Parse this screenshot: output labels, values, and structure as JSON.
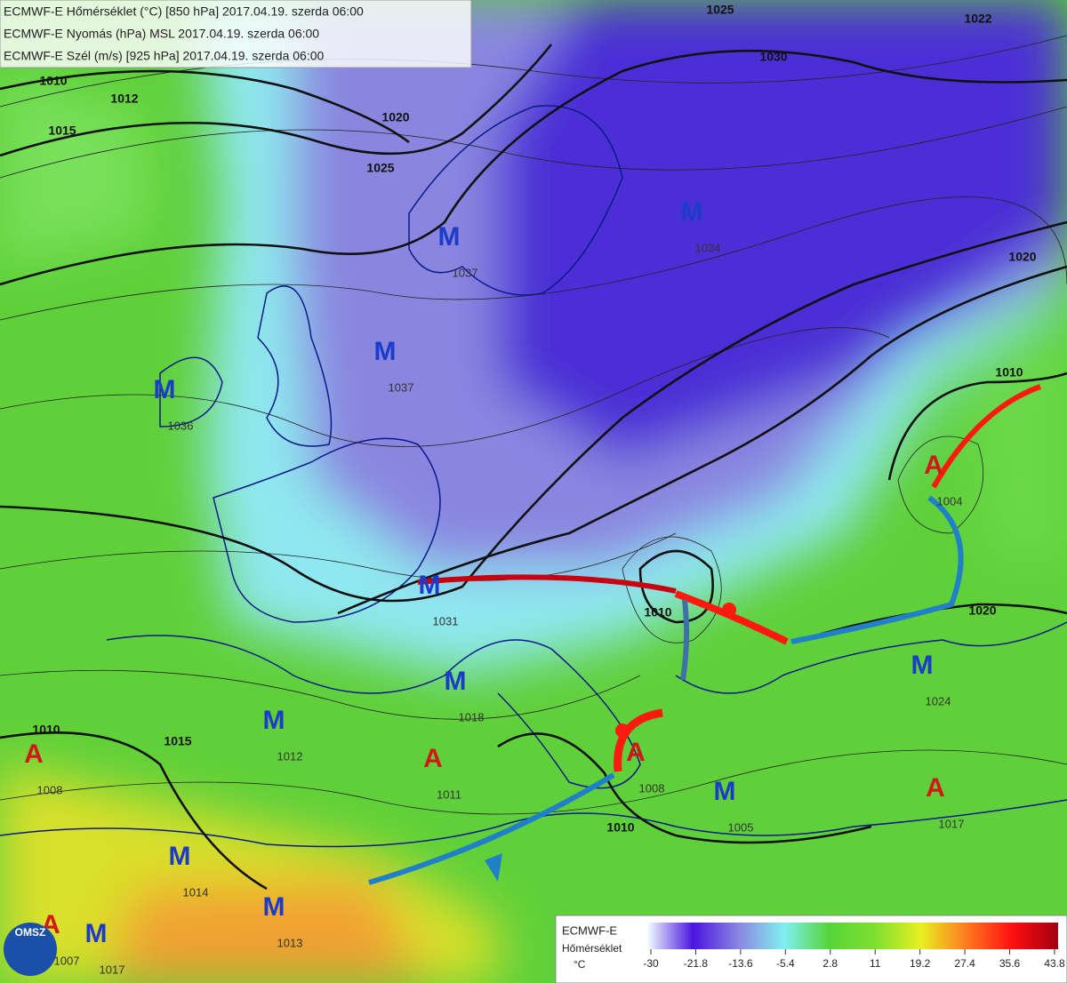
{
  "header": {
    "lines": [
      "ECMWF-E Hőmérséklet (°C) [850 hPa] 2017.04.19. szerda 06:00",
      "ECMWF-E Nyomás (hPa) MSL 2017.04.19. szerda 06:00",
      "ECMWF-E Szél (m/s) [925 hPa] 2017.04.19. szerda 06:00"
    ]
  },
  "centers": [
    {
      "label": "M",
      "value": "1037"
    },
    {
      "label": "M",
      "value": "1034"
    },
    {
      "label": "M",
      "value": "1037"
    },
    {
      "label": "M",
      "value": "1036"
    },
    {
      "label": "M",
      "value": "1031"
    },
    {
      "label": "A",
      "value": "1004"
    },
    {
      "label": "M",
      "value": "1018"
    },
    {
      "label": "M",
      "value": "1012"
    },
    {
      "label": "A",
      "value": "1011"
    },
    {
      "label": "A",
      "value": "1008"
    },
    {
      "label": "M",
      "value": "1005"
    },
    {
      "label": "A",
      "value": "1017"
    },
    {
      "label": "M",
      "value": "1014"
    },
    {
      "label": "M",
      "value": "1013"
    },
    {
      "label": "M",
      "value": "1017"
    },
    {
      "label": "A",
      "value": "1008"
    },
    {
      "label": "A",
      "value": "1007"
    },
    {
      "label": "M",
      "value": "1024"
    }
  ],
  "isobar_labels": [
    "1010",
    "1015",
    "1012",
    "1020",
    "1025",
    "1030",
    "1025",
    "1020",
    "1010",
    "1020",
    "1010",
    "1010",
    "1010",
    "1015",
    "1022"
  ],
  "legend": {
    "title": "ECMWF-E",
    "subtitle": "Hőmérséklet",
    "unit": "°C",
    "ticks": [
      -30,
      -21.8,
      -13.6,
      -5.4,
      2.8,
      11,
      19.2,
      27.4,
      35.6,
      43.8
    ]
  },
  "logo": "OMSZ"
}
